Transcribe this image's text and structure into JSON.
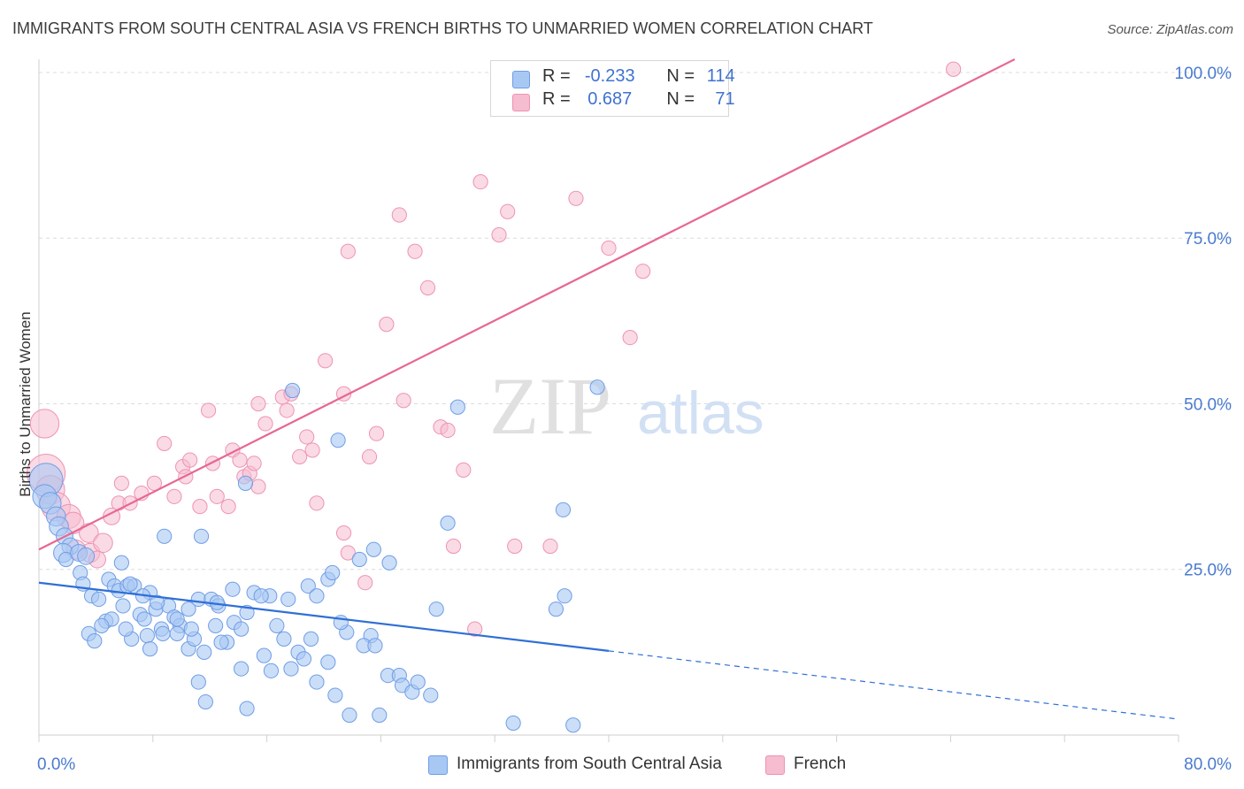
{
  "title": "IMMIGRANTS FROM SOUTH CENTRAL ASIA VS FRENCH BIRTHS TO UNMARRIED WOMEN CORRELATION CHART",
  "source": "Source: ZipAtlas.com",
  "watermark": {
    "zip": "ZIP",
    "atlas": "atlas"
  },
  "colors": {
    "blue_fill": "#a8c8f4",
    "blue_stroke": "#6f9de6",
    "blue_line": "#2f6fd6",
    "pink_fill": "#f6bcd0",
    "pink_stroke": "#ee93b2",
    "pink_line": "#e8678f",
    "grid": "#dcdcdc",
    "axis_text": "#4a7bd0"
  },
  "legend_top": {
    "rows": [
      {
        "r_label": "R = ",
        "r_value": "-0.233",
        "n_label": "N = ",
        "n_value": "114",
        "color": "#a8c8f4"
      },
      {
        "r_label": "R = ",
        "r_value": "0.687",
        "n_label": "N = ",
        "n_value": "71",
        "color": "#f6bcd0"
      }
    ]
  },
  "legend_bottom": [
    {
      "label": "Immigrants from South Central Asia",
      "color": "#a8c8f4"
    },
    {
      "label": "French",
      "color": "#f6bcd0"
    }
  ],
  "chart_data": {
    "type": "scatter",
    "title": "IMMIGRANTS FROM SOUTH CENTRAL ASIA VS FRENCH BIRTHS TO UNMARRIED WOMEN CORRELATION CHART",
    "xlabel": "",
    "ylabel": "Births to Unmarried Women",
    "xlim": [
      0,
      80
    ],
    "ylim": [
      0,
      102
    ],
    "x_tick_labels": [
      {
        "value": 0,
        "label": "0.0%"
      },
      {
        "value": 80,
        "label": "80.0%"
      }
    ],
    "y_tick_labels": [
      {
        "value": 25,
        "label": "25.0%"
      },
      {
        "value": 50,
        "label": "50.0%"
      },
      {
        "value": 75,
        "label": "75.0%"
      },
      {
        "value": 100,
        "label": "100.0%"
      }
    ],
    "grid": true,
    "legend_position": "bottom",
    "series": [
      {
        "name": "Immigrants from South Central Asia",
        "color": "#a8c8f4",
        "r": -0.233,
        "n": 114,
        "trend": {
          "x_start": 0,
          "y_start": 23.0,
          "x_solid_end": 40,
          "y_solid_end": 12.7,
          "x_end": 80,
          "y_end": 2.4
        },
        "points": [
          [
            0.5,
            38.5,
            14
          ],
          [
            0.4,
            36,
            10
          ],
          [
            0.8,
            35,
            9
          ],
          [
            1.2,
            33,
            8
          ],
          [
            1.4,
            31.5,
            8
          ],
          [
            1.8,
            30,
            7
          ],
          [
            2.2,
            28.5,
            7
          ],
          [
            1.7,
            27.5,
            8
          ],
          [
            1.9,
            26.5,
            6
          ],
          [
            2.8,
            27.5,
            7
          ],
          [
            3.3,
            27,
            7
          ],
          [
            2.9,
            24.5,
            6
          ],
          [
            3.1,
            22.8,
            6
          ],
          [
            3.7,
            21,
            6
          ],
          [
            4.2,
            20.5,
            6
          ],
          [
            4.9,
            23.5,
            6
          ],
          [
            5.3,
            22.5,
            6
          ],
          [
            5.6,
            21.8,
            6
          ],
          [
            6.2,
            22.5,
            6
          ],
          [
            6.7,
            22.5,
            6
          ],
          [
            5.9,
            19.5,
            6
          ],
          [
            4.7,
            17.2,
            6
          ],
          [
            5.1,
            17.5,
            6
          ],
          [
            7.1,
            18.2,
            6
          ],
          [
            7.4,
            17.5,
            6
          ],
          [
            7.8,
            21.5,
            6
          ],
          [
            8.2,
            19,
            6
          ],
          [
            8.6,
            16,
            6
          ],
          [
            9.1,
            19.5,
            6
          ],
          [
            7.6,
            15,
            6
          ],
          [
            9.5,
            17.8,
            6
          ],
          [
            9.9,
            16.5,
            6
          ],
          [
            10.5,
            19,
            6
          ],
          [
            11.2,
            20.5,
            6
          ],
          [
            12.1,
            20.5,
            6
          ],
          [
            12.6,
            19.5,
            6
          ],
          [
            12.4,
            16.5,
            6
          ],
          [
            13.7,
            17,
            6
          ],
          [
            14.2,
            16,
            6
          ],
          [
            13.2,
            14,
            6
          ],
          [
            14.6,
            18.5,
            6
          ],
          [
            15.1,
            21.5,
            6
          ],
          [
            16.2,
            21,
            6
          ],
          [
            16.7,
            16.5,
            6
          ],
          [
            17.2,
            14.5,
            6
          ],
          [
            18.2,
            12.5,
            6
          ],
          [
            18.6,
            11.5,
            6
          ],
          [
            17.7,
            10,
            6
          ],
          [
            16.3,
            9.7,
            6
          ],
          [
            14.2,
            10,
            6
          ],
          [
            19.1,
            14.5,
            6
          ],
          [
            20.3,
            11,
            6
          ],
          [
            21.6,
            15.5,
            6
          ],
          [
            23.3,
            15,
            6
          ],
          [
            21.2,
            17,
            6
          ],
          [
            20.3,
            23.5,
            6
          ],
          [
            18.9,
            22.5,
            6
          ],
          [
            20.6,
            24.5,
            6
          ],
          [
            22.5,
            26.5,
            6
          ],
          [
            24.6,
            26,
            6
          ],
          [
            22.8,
            13.5,
            6
          ],
          [
            23.6,
            13.5,
            6
          ],
          [
            24.5,
            9,
            6
          ],
          [
            25.3,
            9,
            6
          ],
          [
            25.5,
            7.5,
            6
          ],
          [
            26.2,
            6.5,
            6
          ],
          [
            27.5,
            6,
            6
          ],
          [
            19.5,
            8,
            6
          ],
          [
            20.8,
            6,
            6
          ],
          [
            21.8,
            3,
            6
          ],
          [
            23.9,
            3,
            6
          ],
          [
            14.6,
            4,
            6
          ],
          [
            11.7,
            5,
            6
          ],
          [
            11.2,
            8,
            6
          ],
          [
            11.6,
            12.5,
            6
          ],
          [
            10.5,
            13,
            6
          ],
          [
            10.9,
            14.5,
            6
          ],
          [
            9.7,
            15.3,
            6
          ],
          [
            8.7,
            15.3,
            6
          ],
          [
            7.8,
            13,
            6
          ],
          [
            6.5,
            14.5,
            6
          ],
          [
            6.1,
            16,
            6
          ],
          [
            4.4,
            16.5,
            6
          ],
          [
            3.5,
            15.3,
            6
          ],
          [
            3.9,
            14.2,
            6
          ],
          [
            12.5,
            20,
            6
          ],
          [
            13.6,
            22,
            6
          ],
          [
            15.6,
            21,
            6
          ],
          [
            17.5,
            20.5,
            6
          ],
          [
            19.5,
            21,
            6
          ],
          [
            23.5,
            28,
            6
          ],
          [
            27.9,
            19,
            6
          ],
          [
            28.7,
            32,
            6
          ],
          [
            29.4,
            49.5,
            6
          ],
          [
            33.3,
            1.8,
            6
          ],
          [
            37.5,
            1.5,
            6
          ],
          [
            36.3,
            19,
            6
          ],
          [
            36.9,
            21,
            6
          ],
          [
            36.8,
            34,
            6
          ],
          [
            39.2,
            52.5,
            6
          ],
          [
            21,
            44.5,
            6
          ],
          [
            17.8,
            52,
            6
          ],
          [
            14.5,
            38,
            6
          ],
          [
            11.4,
            30,
            6
          ],
          [
            8.8,
            30,
            6
          ],
          [
            5.8,
            26,
            6
          ],
          [
            6.4,
            22.8,
            6
          ],
          [
            7.3,
            21,
            6
          ],
          [
            8.3,
            20,
            6
          ],
          [
            9.7,
            17.5,
            6
          ],
          [
            10.7,
            16,
            6
          ],
          [
            12.8,
            14,
            6
          ],
          [
            15.8,
            12,
            6
          ],
          [
            26.6,
            8,
            6
          ]
        ]
      },
      {
        "name": "French",
        "color": "#f6bcd0",
        "r": 0.687,
        "n": 71,
        "trend": {
          "x_start": 0,
          "y_start": 28.0,
          "x_end": 68.5,
          "y_end": 102
        },
        "points": [
          [
            0.5,
            39.5,
            16
          ],
          [
            0.8,
            37,
            12
          ],
          [
            1.2,
            34.5,
            12
          ],
          [
            2.1,
            33,
            10
          ],
          [
            2.4,
            32,
            9
          ],
          [
            3.5,
            30.5,
            8
          ],
          [
            3.6,
            27.5,
            8
          ],
          [
            4.5,
            29,
            8
          ],
          [
            4.1,
            26.5,
            7
          ],
          [
            5.1,
            33,
            7
          ],
          [
            5.6,
            35,
            6
          ],
          [
            6.4,
            35,
            6
          ],
          [
            5.8,
            38,
            6
          ],
          [
            7.2,
            36.5,
            6
          ],
          [
            8.1,
            38,
            6
          ],
          [
            8.8,
            44,
            6
          ],
          [
            9.5,
            36,
            6
          ],
          [
            10.1,
            40.5,
            6
          ],
          [
            10.3,
            39,
            6
          ],
          [
            10.6,
            41.5,
            6
          ],
          [
            11.3,
            34.5,
            6
          ],
          [
            12.2,
            41,
            6
          ],
          [
            11.9,
            49,
            6
          ],
          [
            12.5,
            36,
            6
          ],
          [
            13.3,
            34.5,
            6
          ],
          [
            13.6,
            43,
            6
          ],
          [
            14.1,
            41.5,
            6
          ],
          [
            14.4,
            39,
            6
          ],
          [
            14.8,
            39.5,
            6
          ],
          [
            15.4,
            37.5,
            6
          ],
          [
            15.9,
            47,
            6
          ],
          [
            15.4,
            50,
            6
          ],
          [
            17.1,
            51,
            6
          ],
          [
            17.7,
            51.5,
            6
          ],
          [
            18.3,
            42,
            6
          ],
          [
            18.8,
            45,
            6
          ],
          [
            19.2,
            43,
            6
          ],
          [
            19.5,
            35,
            6
          ],
          [
            20.1,
            56.5,
            6
          ],
          [
            21.4,
            51.5,
            6
          ],
          [
            21.4,
            30.5,
            6
          ],
          [
            21.7,
            27.5,
            6
          ],
          [
            22.9,
            23,
            6
          ],
          [
            23.2,
            42,
            6
          ],
          [
            23.7,
            45.5,
            6
          ],
          [
            24.4,
            62,
            6
          ],
          [
            25.6,
            50.5,
            6
          ],
          [
            25.3,
            78.5,
            6
          ],
          [
            26.4,
            73,
            6
          ],
          [
            27.3,
            67.5,
            6
          ],
          [
            28.2,
            46.5,
            6
          ],
          [
            28.7,
            46,
            6
          ],
          [
            29.1,
            28.5,
            6
          ],
          [
            29.8,
            40,
            6
          ],
          [
            30.6,
            16,
            6
          ],
          [
            31,
            83.5,
            6
          ],
          [
            32.3,
            75.5,
            6
          ],
          [
            32.9,
            79,
            6
          ],
          [
            33.4,
            28.5,
            6
          ],
          [
            35.9,
            28.5,
            6
          ],
          [
            37.7,
            81,
            6
          ],
          [
            39.1,
            100,
            6
          ],
          [
            40,
            73.5,
            6
          ],
          [
            41.5,
            60,
            6
          ],
          [
            42.4,
            70,
            6
          ],
          [
            64.2,
            100.5,
            6
          ],
          [
            21.7,
            73,
            6
          ],
          [
            17.4,
            49,
            6
          ],
          [
            15.1,
            41,
            6
          ],
          [
            0.4,
            47,
            12
          ],
          [
            2.6,
            28,
            8
          ]
        ]
      }
    ]
  }
}
